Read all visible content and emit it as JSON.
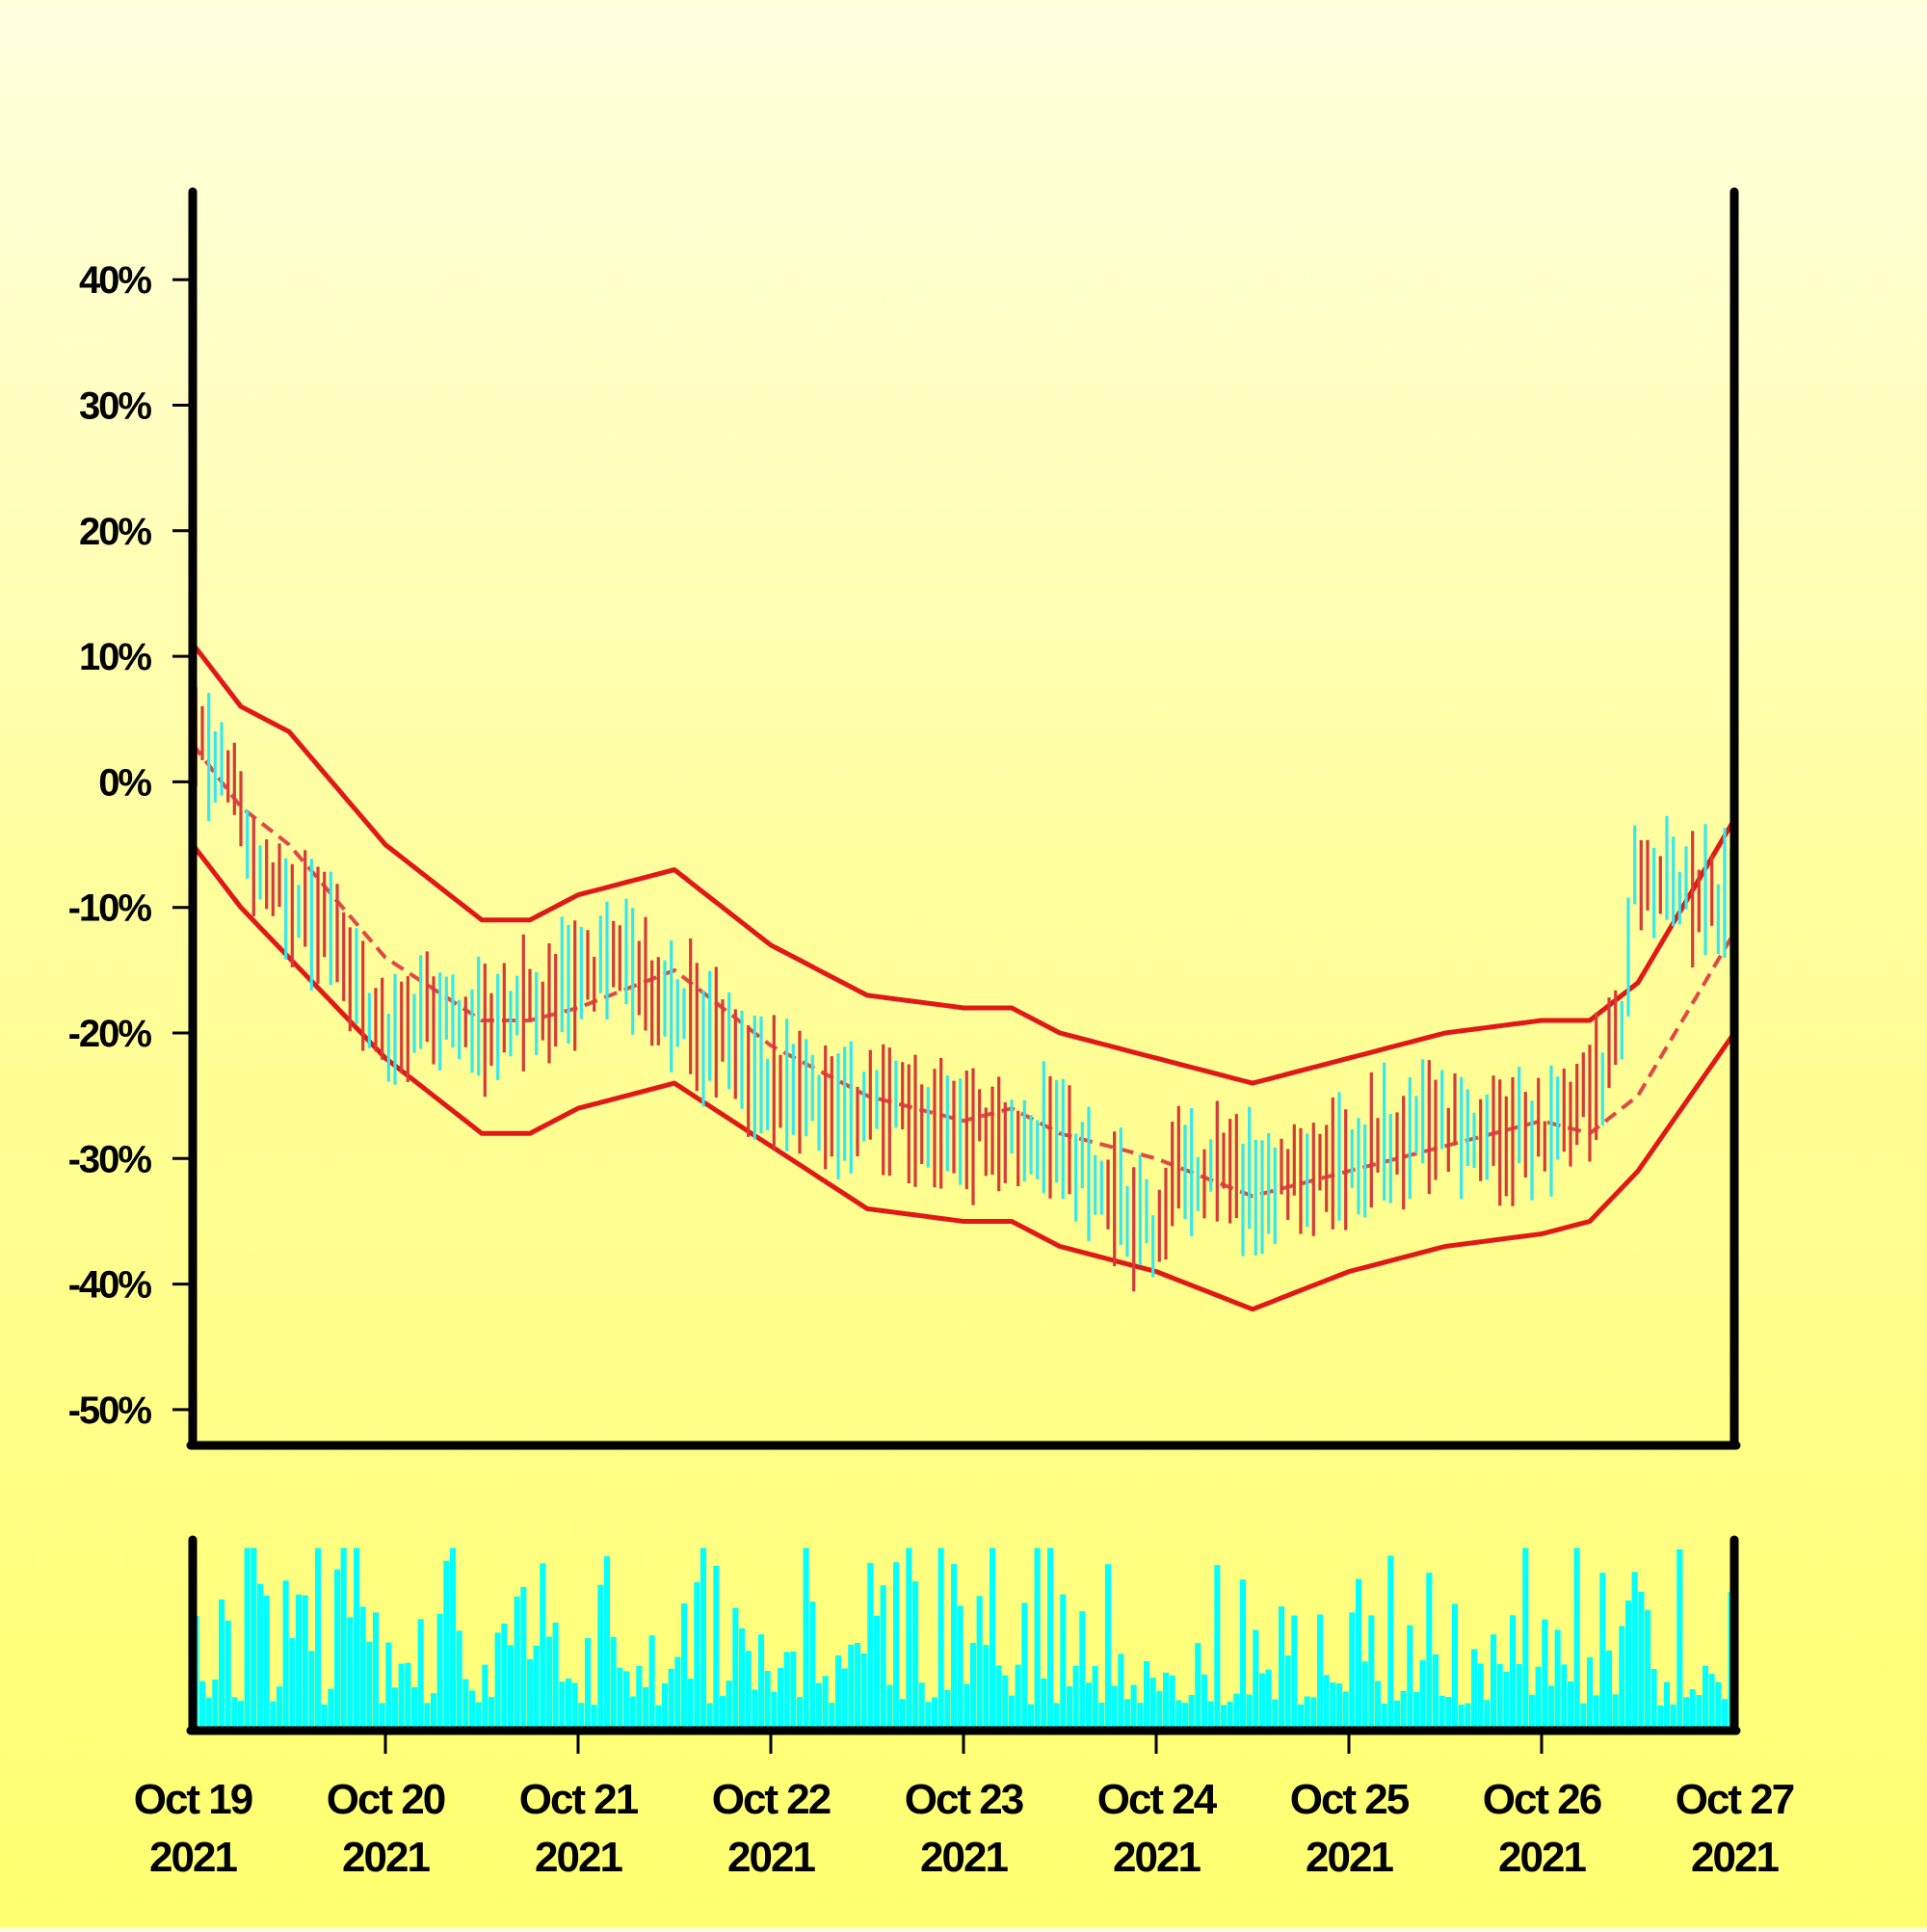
{
  "chart_data": {
    "type": "candlestick",
    "title": "",
    "xlabel": "",
    "ylabel": "",
    "y_unit": "%",
    "ylim": [
      -53,
      47
    ],
    "y_ticks": [
      40,
      30,
      20,
      10,
      0,
      -10,
      -20,
      -30,
      -40,
      -50
    ],
    "y_tick_labels": [
      "40%",
      "30%",
      "20%",
      "10%",
      "0%",
      "-10%",
      "-20%",
      "-30%",
      "-40%",
      "-50%"
    ],
    "x_start": "Oct 19 2021",
    "x_end": "Oct 27 2021",
    "x_ticks": [
      {
        "line1": "Oct 19",
        "line2": "2021"
      },
      {
        "line1": "Oct 20",
        "line2": "2021"
      },
      {
        "line1": "Oct 21",
        "line2": "2021"
      },
      {
        "line1": "Oct 22",
        "line2": "2021"
      },
      {
        "line1": "Oct 23",
        "line2": "2021"
      },
      {
        "line1": "Oct 24",
        "line2": "2021"
      },
      {
        "line1": "Oct 25",
        "line2": "2021"
      },
      {
        "line1": "Oct 26",
        "line2": "2021"
      },
      {
        "line1": "Oct 27",
        "line2": "2021"
      }
    ],
    "grid": false,
    "legend": "none",
    "colors": {
      "up": "#33e8ee",
      "down": "#d63a3a",
      "band": "#e01818",
      "midline": "#e04848",
      "volume": "#00ffff",
      "axis": "#000000"
    },
    "price_anchors": [
      {
        "t": "Oct 19 2021 00:00",
        "value": 3
      },
      {
        "t": "Oct 19 2021 04:00",
        "value": 2
      },
      {
        "t": "Oct 19 2021 07:00",
        "value": -5
      },
      {
        "t": "Oct 19 2021 12:00",
        "value": -9
      },
      {
        "t": "Oct 19 2021 18:00",
        "value": -13
      },
      {
        "t": "Oct 20 2021 00:00",
        "value": -20
      },
      {
        "t": "Oct 20 2021 06:00",
        "value": -18
      },
      {
        "t": "Oct 20 2021 12:00",
        "value": -20
      },
      {
        "t": "Oct 20 2021 18:00",
        "value": -18
      },
      {
        "t": "Oct 21 2021 00:00",
        "value": -15
      },
      {
        "t": "Oct 21 2021 06:00",
        "value": -14
      },
      {
        "t": "Oct 21 2021 12:00",
        "value": -18
      },
      {
        "t": "Oct 21 2021 18:00",
        "value": -21
      },
      {
        "t": "Oct 22 2021 00:00",
        "value": -24
      },
      {
        "t": "Oct 22 2021 12:00",
        "value": -26
      },
      {
        "t": "Oct 23 2021 00:00",
        "value": -27
      },
      {
        "t": "Oct 23 2021 12:00",
        "value": -29
      },
      {
        "t": "Oct 24 2021 00:00",
        "value": -36
      },
      {
        "t": "Oct 24 2021 03:00",
        "value": -31
      },
      {
        "t": "Oct 24 2021 12:00",
        "value": -32
      },
      {
        "t": "Oct 25 2021 00:00",
        "value": -30
      },
      {
        "t": "Oct 25 2021 12:00",
        "value": -27
      },
      {
        "t": "Oct 26 2021 00:00",
        "value": -28
      },
      {
        "t": "Oct 26 2021 06:00",
        "value": -25
      },
      {
        "t": "Oct 26 2021 10:00",
        "value": -20
      },
      {
        "t": "Oct 26 2021 11:30",
        "value": -7
      },
      {
        "t": "Oct 26 2021 18:00",
        "value": -9
      },
      {
        "t": "Oct 27 2021 00:00",
        "value": -10
      }
    ],
    "midline": [
      {
        "t": "Oct 19 2021 00:00",
        "value": 3
      },
      {
        "t": "Oct 19 2021 06:00",
        "value": -2
      },
      {
        "t": "Oct 19 2021 12:00",
        "value": -5
      },
      {
        "t": "Oct 20 2021 00:00",
        "value": -14
      },
      {
        "t": "Oct 20 2021 12:00",
        "value": -19
      },
      {
        "t": "Oct 20 2021 18:00",
        "value": -19
      },
      {
        "t": "Oct 21 2021 00:00",
        "value": -18
      },
      {
        "t": "Oct 21 2021 12:00",
        "value": -15
      },
      {
        "t": "Oct 22 2021 00:00",
        "value": -21
      },
      {
        "t": "Oct 22 2021 12:00",
        "value": -25
      },
      {
        "t": "Oct 23 2021 00:00",
        "value": -27
      },
      {
        "t": "Oct 23 2021 06:00",
        "value": -26
      },
      {
        "t": "Oct 23 2021 12:00",
        "value": -28
      },
      {
        "t": "Oct 24 2021 00:00",
        "value": -30
      },
      {
        "t": "Oct 24 2021 12:00",
        "value": -33
      },
      {
        "t": "Oct 25 2021 00:00",
        "value": -31
      },
      {
        "t": "Oct 25 2021 12:00",
        "value": -29
      },
      {
        "t": "Oct 26 2021 00:00",
        "value": -27
      },
      {
        "t": "Oct 26 2021 06:00",
        "value": -28
      },
      {
        "t": "Oct 26 2021 12:00",
        "value": -25
      },
      {
        "t": "Oct 27 2021 00:00",
        "value": -12
      }
    ],
    "upper_band": [
      {
        "t": "Oct 19 2021 00:00",
        "value": 11
      },
      {
        "t": "Oct 19 2021 06:00",
        "value": 6
      },
      {
        "t": "Oct 19 2021 12:00",
        "value": 4
      },
      {
        "t": "Oct 20 2021 00:00",
        "value": -5
      },
      {
        "t": "Oct 20 2021 12:00",
        "value": -11
      },
      {
        "t": "Oct 20 2021 18:00",
        "value": -11
      },
      {
        "t": "Oct 21 2021 00:00",
        "value": -9
      },
      {
        "t": "Oct 21 2021 12:00",
        "value": -7
      },
      {
        "t": "Oct 22 2021 00:00",
        "value": -13
      },
      {
        "t": "Oct 22 2021 12:00",
        "value": -17
      },
      {
        "t": "Oct 23 2021 00:00",
        "value": -18
      },
      {
        "t": "Oct 23 2021 06:00",
        "value": -18
      },
      {
        "t": "Oct 23 2021 12:00",
        "value": -20
      },
      {
        "t": "Oct 24 2021 00:00",
        "value": -22
      },
      {
        "t": "Oct 24 2021 12:00",
        "value": -24
      },
      {
        "t": "Oct 25 2021 00:00",
        "value": -22
      },
      {
        "t": "Oct 25 2021 12:00",
        "value": -20
      },
      {
        "t": "Oct 26 2021 00:00",
        "value": -19
      },
      {
        "t": "Oct 26 2021 06:00",
        "value": -19
      },
      {
        "t": "Oct 26 2021 12:00",
        "value": -16
      },
      {
        "t": "Oct 27 2021 00:00",
        "value": -3
      }
    ],
    "lower_band": [
      {
        "t": "Oct 19 2021 00:00",
        "value": -5
      },
      {
        "t": "Oct 19 2021 06:00",
        "value": -10
      },
      {
        "t": "Oct 19 2021 12:00",
        "value": -14
      },
      {
        "t": "Oct 20 2021 00:00",
        "value": -22
      },
      {
        "t": "Oct 20 2021 12:00",
        "value": -28
      },
      {
        "t": "Oct 20 2021 18:00",
        "value": -28
      },
      {
        "t": "Oct 21 2021 00:00",
        "value": -26
      },
      {
        "t": "Oct 21 2021 12:00",
        "value": -24
      },
      {
        "t": "Oct 22 2021 00:00",
        "value": -29
      },
      {
        "t": "Oct 22 2021 12:00",
        "value": -34
      },
      {
        "t": "Oct 23 2021 00:00",
        "value": -35
      },
      {
        "t": "Oct 23 2021 06:00",
        "value": -35
      },
      {
        "t": "Oct 23 2021 12:00",
        "value": -37
      },
      {
        "t": "Oct 24 2021 00:00",
        "value": -39
      },
      {
        "t": "Oct 24 2021 12:00",
        "value": -42
      },
      {
        "t": "Oct 25 2021 00:00",
        "value": -39
      },
      {
        "t": "Oct 25 2021 12:00",
        "value": -37
      },
      {
        "t": "Oct 26 2021 00:00",
        "value": -36
      },
      {
        "t": "Oct 26 2021 06:00",
        "value": -35
      },
      {
        "t": "Oct 26 2021 12:00",
        "value": -31
      },
      {
        "t": "Oct 27 2021 00:00",
        "value": -20
      }
    ]
  }
}
